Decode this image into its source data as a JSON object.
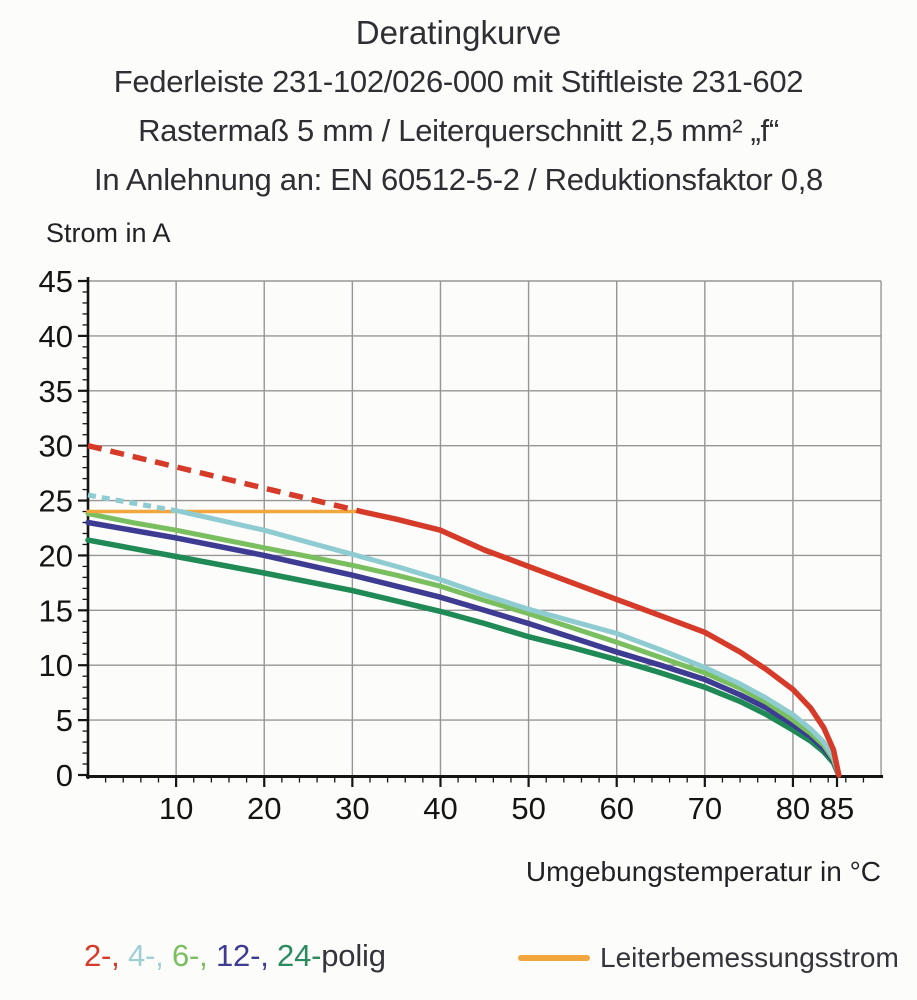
{
  "header": {
    "lines": [
      "Deratingkurve",
      "Federleiste 231-102/026-000 mit Stiftleiste 231-602",
      "Rastermaß 5 mm / Leiterquerschnitt 2,5 mm² „f“",
      "In Anlehnung an: EN 60512-5-2 / Reduktionsfaktor 0,8"
    ]
  },
  "chart_data": {
    "type": "line",
    "title": "Deratingkurve",
    "xlabel": "Umgebungstemperatur in °C",
    "ylabel": "Strom in A",
    "xlim": [
      0,
      90
    ],
    "ylim": [
      0,
      45
    ],
    "x_ticks_labeled": [
      10,
      20,
      30,
      40,
      50,
      60,
      70,
      80,
      85
    ],
    "x_gridlines": [
      10,
      20,
      30,
      40,
      50,
      60,
      70,
      80
    ],
    "y_ticks_labeled": [
      45,
      40,
      35,
      30,
      25,
      20,
      15,
      10,
      5,
      0
    ],
    "x_minor_step": 2,
    "x_minor_end": 88,
    "y_minor_step": 1,
    "grid": true,
    "axis_color": "#151515",
    "grid_color": "#969696",
    "series": [
      {
        "name": "2-polig",
        "color": "#d63a28",
        "width": 5.5,
        "segments": [
          {
            "style": "dashed",
            "dash": "14 9",
            "points": [
              [
                0,
                30
              ],
              [
                31,
                24
              ]
            ]
          },
          {
            "style": "solid",
            "points": [
              [
                31,
                24
              ],
              [
                35,
                23.3
              ],
              [
                40,
                22.3
              ],
              [
                45,
                20.5
              ],
              [
                50,
                19.0
              ],
              [
                55,
                17.5
              ],
              [
                60,
                16.0
              ],
              [
                65,
                14.5
              ],
              [
                70,
                13.0
              ],
              [
                74,
                11.2
              ],
              [
                77,
                9.6
              ],
              [
                80,
                7.8
              ],
              [
                82,
                6.1
              ],
              [
                83.5,
                4.3
              ],
              [
                84.6,
                2.3
              ],
              [
                85.2,
                0
              ]
            ]
          }
        ]
      },
      {
        "name": "4-polig",
        "color": "#8fccd2",
        "width": 5,
        "segments": [
          {
            "style": "dashed",
            "dash": "8 6",
            "points": [
              [
                0,
                25.5
              ],
              [
                10.5,
                24
              ]
            ]
          },
          {
            "style": "solid",
            "points": [
              [
                10.5,
                24
              ],
              [
                15,
                23.2
              ],
              [
                20,
                22.3
              ],
              [
                25,
                21.2
              ],
              [
                30,
                20.1
              ],
              [
                35,
                19.0
              ],
              [
                40,
                17.8
              ],
              [
                45,
                16.4
              ],
              [
                50,
                15.1
              ],
              [
                55,
                14.0
              ],
              [
                60,
                12.9
              ],
              [
                65,
                11.4
              ],
              [
                70,
                9.8
              ],
              [
                74,
                8.3
              ],
              [
                77,
                7.0
              ],
              [
                80,
                5.5
              ],
              [
                82,
                4.2
              ],
              [
                83.5,
                3.0
              ],
              [
                84.6,
                1.6
              ],
              [
                85.2,
                0
              ]
            ]
          }
        ]
      },
      {
        "name": "6-polig",
        "color": "#7abf5f",
        "width": 5,
        "segments": [
          {
            "style": "solid",
            "points": [
              [
                0,
                23.8
              ],
              [
                5,
                23.0
              ],
              [
                10,
                22.3
              ],
              [
                15,
                21.5
              ],
              [
                20,
                20.7
              ],
              [
                25,
                19.9
              ],
              [
                30,
                19.1
              ],
              [
                35,
                18.2
              ],
              [
                40,
                17.2
              ],
              [
                45,
                15.9
              ],
              [
                50,
                14.7
              ],
              [
                55,
                13.4
              ],
              [
                60,
                12.1
              ],
              [
                65,
                10.7
              ],
              [
                70,
                9.3
              ],
              [
                74,
                7.9
              ],
              [
                77,
                6.6
              ],
              [
                80,
                5.0
              ],
              [
                82,
                3.8
              ],
              [
                83.5,
                2.7
              ],
              [
                84.6,
                1.4
              ],
              [
                85.2,
                0
              ]
            ]
          }
        ]
      },
      {
        "name": "12-polig",
        "color": "#3d3b92",
        "width": 5.5,
        "segments": [
          {
            "style": "solid",
            "points": [
              [
                0,
                23.0
              ],
              [
                10,
                21.6
              ],
              [
                20,
                20.0
              ],
              [
                30,
                18.2
              ],
              [
                40,
                16.2
              ],
              [
                45,
                15.0
              ],
              [
                50,
                13.8
              ],
              [
                55,
                12.5
              ],
              [
                60,
                11.2
              ],
              [
                65,
                10.0
              ],
              [
                70,
                8.7
              ],
              [
                74,
                7.3
              ],
              [
                77,
                6.1
              ],
              [
                80,
                4.6
              ],
              [
                82,
                3.5
              ],
              [
                83.5,
                2.4
              ],
              [
                84.6,
                1.3
              ],
              [
                85.2,
                0
              ]
            ]
          }
        ]
      },
      {
        "name": "24-polig",
        "color": "#1f8a55",
        "width": 5.5,
        "segments": [
          {
            "style": "solid",
            "points": [
              [
                0,
                21.4
              ],
              [
                10,
                19.9
              ],
              [
                20,
                18.4
              ],
              [
                30,
                16.8
              ],
              [
                40,
                14.9
              ],
              [
                45,
                13.8
              ],
              [
                50,
                12.6
              ],
              [
                55,
                11.6
              ],
              [
                60,
                10.5
              ],
              [
                65,
                9.3
              ],
              [
                70,
                8.0
              ],
              [
                74,
                6.7
              ],
              [
                77,
                5.5
              ],
              [
                80,
                4.1
              ],
              [
                82,
                3.1
              ],
              [
                83.5,
                2.1
              ],
              [
                84.6,
                1.1
              ],
              [
                85.2,
                0
              ]
            ]
          }
        ]
      },
      {
        "name": "Leiterbemessungsstrom",
        "color": "#f2a73e",
        "width": 3.5,
        "segments": [
          {
            "style": "solid",
            "points": [
              [
                0,
                24
              ],
              [
                31.2,
                24
              ]
            ]
          }
        ]
      }
    ],
    "legend_position": "bottom"
  },
  "legend": {
    "poles": [
      {
        "label": "2-,",
        "color": "#d63a28"
      },
      {
        "label": "4-,",
        "color": "#9fced4"
      },
      {
        "label": "6-,",
        "color": "#7abf5f"
      },
      {
        "label": "12-,",
        "color": "#3d3b92"
      },
      {
        "label": "24-",
        "color": "#2a8a60"
      }
    ],
    "suffix": "polig",
    "rated_label": "Leiterbemessungsstrom",
    "rated_color": "#f2a73e"
  }
}
